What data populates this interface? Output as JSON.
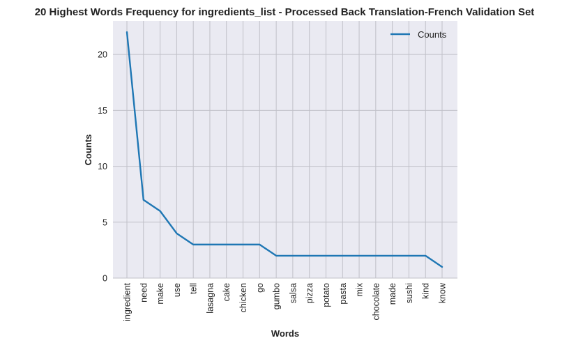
{
  "chart_data": {
    "type": "line",
    "title": "20 Highest Words Frequency for ingredients_list - Processed Back Translation-French Validation Set",
    "xlabel": "Words",
    "ylabel": "Counts",
    "categories": [
      "ingredient",
      "need",
      "make",
      "use",
      "tell",
      "lasagna",
      "cake",
      "chicken",
      "go",
      "gumbo",
      "salsa",
      "pizza",
      "potato",
      "pasta",
      "mix",
      "chocolate",
      "made",
      "sushi",
      "kind",
      "know"
    ],
    "series": [
      {
        "name": "Counts",
        "values": [
          22,
          7,
          6,
          4,
          3,
          3,
          3,
          3,
          3,
          2,
          2,
          2,
          2,
          2,
          2,
          2,
          2,
          2,
          2,
          1
        ]
      }
    ],
    "ylim": [
      0,
      23
    ],
    "yticks": [
      0,
      5,
      10,
      15,
      20
    ],
    "grid": true,
    "legend": "top-right",
    "colors": {
      "line": "#1f77b4",
      "plot_background": "#eaeaf2",
      "grid": "#c0c0c8"
    }
  }
}
